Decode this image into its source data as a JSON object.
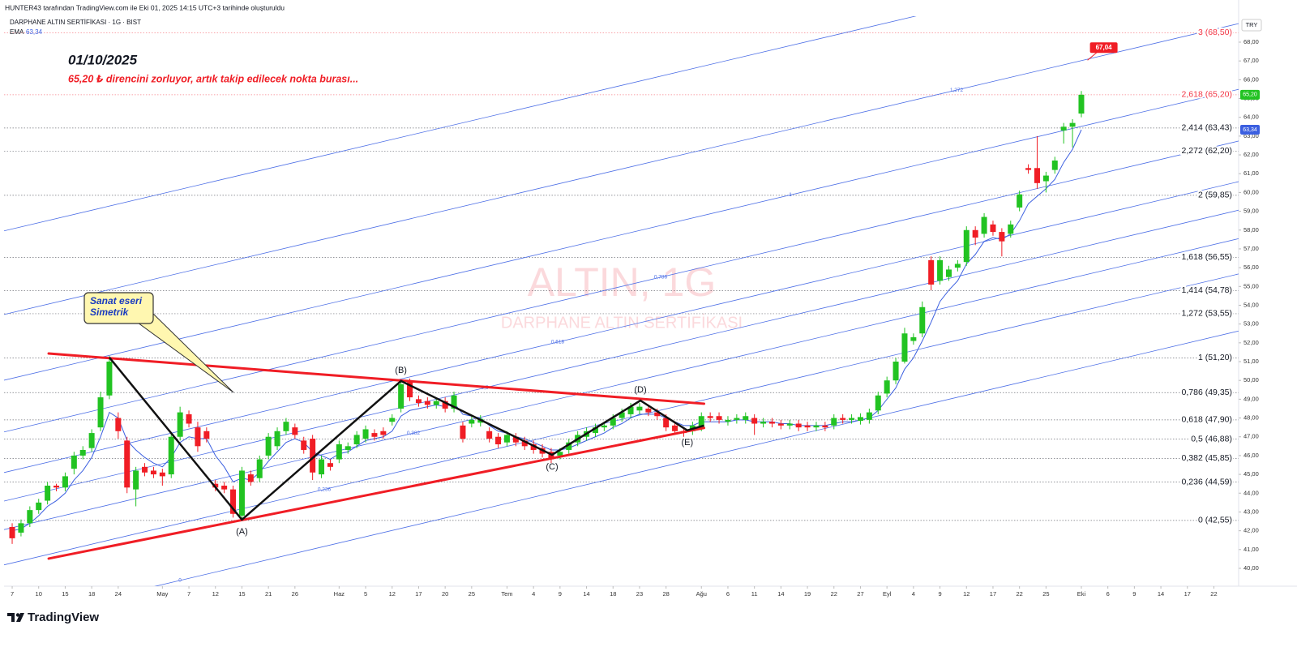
{
  "header": {
    "credit": "HUNTER43 tarafından TradingView.com ile Eki 01, 2025 14:15 UTC+3 tarihinde oluşturuldu",
    "symbol": "DARPHANE ALTIN SERTİFİKASI · 1G · BIST",
    "currency": "TRY",
    "brand": "TradingView"
  },
  "chart_data": {
    "type": "candlestick",
    "title": "01/10/2025",
    "subtitle": "65,20 ₺ direncini zorluyor, artık takip edilecek nokta burası...",
    "watermark": [
      "ALTIN, 1G",
      "DARPHANE ALTIN SERTİFİKASI"
    ],
    "x": [
      0,
      1,
      2,
      3,
      4,
      5,
      6,
      7,
      8,
      9,
      10,
      11,
      12,
      13,
      14,
      15,
      16,
      17,
      18,
      19,
      20,
      21,
      22,
      23,
      24,
      25,
      26,
      27,
      28,
      29,
      30,
      31,
      32,
      33,
      34,
      35,
      36,
      37,
      38,
      39,
      40,
      41,
      42,
      43,
      44,
      45,
      46,
      47,
      48,
      49,
      50,
      51,
      52,
      53,
      54,
      55,
      56,
      57,
      58,
      59,
      60,
      61,
      62,
      63,
      64,
      65,
      66,
      67,
      68,
      69,
      70,
      71,
      72,
      73,
      74,
      75,
      76,
      77,
      78,
      79,
      80,
      81,
      82,
      83,
      84,
      85,
      86,
      87,
      88,
      89,
      90,
      91,
      92,
      93,
      94,
      95,
      96,
      97,
      98,
      99,
      100,
      101,
      102,
      103,
      104,
      105,
      106,
      107,
      108,
      109,
      110,
      111,
      112,
      113,
      114,
      115,
      116,
      117,
      118,
      119,
      120,
      121
    ],
    "open": [
      42.2,
      41.9,
      42.4,
      43.1,
      43.6,
      44.4,
      44.3,
      45.3,
      46.0,
      46.4,
      47.5,
      49.2,
      48.0,
      46.8,
      44.2,
      45.4,
      45.2,
      45.1,
      45.0,
      47.0,
      48.2,
      47.5,
      47.3,
      44.5,
      44.4,
      44.2,
      42.8,
      45.0,
      44.8,
      46.0,
      46.5,
      47.3,
      47.5,
      46.8,
      46.9,
      45.0,
      45.6,
      45.8,
      46.3,
      46.6,
      46.9,
      47.2,
      47.3,
      47.8,
      48.5,
      49.9,
      49.0,
      48.9,
      48.7,
      48.9,
      48.5,
      47.6,
      47.7,
      47.75,
      47.3,
      47.0,
      46.7,
      47.0,
      46.8,
      46.6,
      46.4,
      46.2,
      46.0,
      46.3,
      46.7,
      47.0,
      47.2,
      47.5,
      47.6,
      48.0,
      48.2,
      48.4,
      48.5,
      48.3,
      48.0,
      47.6,
      47.3,
      47.3,
      47.5,
      48.1,
      48.1,
      47.8,
      47.9,
      47.9,
      48.0,
      47.7,
      47.8,
      47.7,
      47.6,
      47.7,
      47.6,
      47.5,
      47.6,
      47.6,
      48.0,
      47.9,
      47.85,
      47.9,
      48.4,
      49.3,
      50.0,
      51.0,
      52.1,
      52.5,
      56.4,
      55.3,
      55.5,
      56.0,
      56.3,
      58.0,
      57.8,
      58.3,
      57.9,
      57.8,
      59.2,
      61.3,
      61.3,
      60.6,
      61.2,
      63.3,
      63.5,
      64.2
    ],
    "high": [
      42.4,
      42.6,
      43.3,
      43.7,
      44.6,
      44.5,
      45.1,
      46.2,
      46.5,
      47.4,
      49.4,
      51.3,
      48.3,
      47.0,
      45.4,
      45.6,
      45.4,
      45.3,
      47.2,
      48.6,
      48.4,
      47.8,
      47.5,
      44.7,
      44.6,
      44.4,
      45.4,
      45.2,
      46.0,
      47.2,
      47.5,
      48.0,
      47.7,
      47.0,
      47.1,
      46.0,
      45.8,
      46.8,
      46.7,
      47.3,
      47.6,
      47.4,
      47.5,
      48.2,
      50.0,
      50.1,
      49.2,
      49.1,
      49.1,
      49.1,
      49.4,
      47.8,
      48.1,
      48.15,
      47.5,
      47.2,
      47.3,
      47.2,
      47.0,
      46.8,
      46.6,
      46.4,
      46.4,
      46.9,
      47.3,
      47.5,
      47.7,
      47.8,
      48.2,
      48.5,
      48.8,
      48.8,
      48.7,
      48.5,
      48.2,
      47.8,
      47.5,
      47.8,
      48.3,
      48.3,
      48.3,
      48.1,
      48.2,
      48.3,
      48.2,
      48.0,
      48.0,
      47.9,
      47.9,
      47.9,
      47.8,
      47.8,
      47.8,
      48.2,
      48.2,
      48.2,
      48.25,
      48.5,
      49.4,
      50.2,
      51.2,
      52.8,
      52.5,
      54.2,
      56.6,
      56.6,
      56.1,
      56.4,
      58.2,
      58.2,
      58.9,
      58.5,
      58.1,
      58.5,
      60.1,
      61.5,
      63.0,
      61.1,
      61.9,
      63.7,
      63.9,
      65.4
    ],
    "low": [
      41.3,
      41.7,
      42.2,
      42.9,
      43.4,
      44.1,
      44.1,
      45.0,
      45.8,
      46.2,
      47.3,
      49.0,
      46.9,
      44.0,
      43.3,
      44.9,
      44.8,
      44.4,
      44.8,
      46.8,
      47.5,
      46.2,
      46.7,
      44.1,
      44.0,
      42.7,
      42.6,
      44.4,
      44.6,
      45.8,
      46.3,
      47.1,
      46.9,
      46.1,
      44.7,
      44.8,
      45.2,
      45.6,
      46.1,
      46.4,
      46.7,
      46.8,
      46.9,
      47.6,
      48.3,
      48.9,
      48.6,
      48.5,
      48.5,
      48.3,
      48.3,
      46.7,
      47.5,
      47.55,
      46.7,
      46.4,
      46.5,
      46.5,
      46.3,
      46.1,
      45.9,
      45.6,
      45.8,
      46.1,
      46.5,
      46.8,
      47.0,
      47.3,
      47.4,
      47.8,
      48.0,
      48.2,
      48.1,
      47.9,
      47.3,
      47.1,
      47.0,
      47.1,
      47.3,
      47.8,
      47.7,
      47.6,
      47.7,
      47.7,
      47.1,
      47.5,
      47.5,
      47.4,
      47.4,
      47.3,
      47.3,
      47.3,
      47.3,
      47.4,
      47.7,
      47.7,
      47.65,
      47.7,
      48.2,
      49.1,
      49.8,
      50.9,
      51.9,
      52.3,
      54.8,
      55.1,
      55.3,
      55.8,
      56.1,
      57.2,
      57.6,
      57.7,
      56.6,
      57.6,
      59.0,
      61.0,
      60.2,
      60.0,
      61.0,
      62.6,
      62.4,
      64.0
    ],
    "close": [
      41.6,
      42.4,
      43.1,
      43.5,
      44.4,
      44.3,
      44.9,
      46.0,
      46.3,
      47.2,
      49.1,
      51.0,
      47.3,
      44.3,
      45.2,
      45.1,
      45.0,
      44.9,
      47.0,
      48.3,
      47.7,
      46.5,
      46.9,
      44.3,
      44.2,
      42.9,
      45.2,
      44.6,
      45.8,
      47.0,
      47.3,
      47.8,
      47.1,
      46.3,
      45.1,
      45.8,
      45.4,
      46.6,
      46.5,
      47.1,
      47.4,
      47.0,
      47.1,
      48.0,
      49.8,
      49.1,
      48.8,
      48.7,
      48.9,
      48.5,
      49.2,
      46.9,
      47.9,
      47.95,
      46.9,
      46.6,
      47.1,
      46.7,
      46.5,
      46.3,
      46.1,
      45.8,
      46.2,
      46.7,
      47.1,
      47.3,
      47.5,
      47.6,
      48.0,
      48.3,
      48.6,
      48.6,
      48.3,
      48.1,
      47.5,
      47.3,
      47.2,
      47.6,
      48.1,
      48.0,
      47.9,
      47.9,
      48.0,
      48.1,
      47.7,
      47.8,
      47.7,
      47.6,
      47.7,
      47.5,
      47.5,
      47.6,
      47.5,
      48.0,
      47.9,
      48.0,
      48.05,
      48.3,
      49.2,
      50.0,
      51.0,
      52.5,
      52.3,
      53.9,
      55.1,
      56.4,
      55.9,
      56.2,
      58.0,
      57.6,
      58.7,
      57.9,
      57.4,
      58.3,
      59.9,
      61.2,
      60.5,
      60.9,
      61.7,
      63.5,
      63.7,
      65.2
    ],
    "colors": {
      "up": "#22c322",
      "down": "#f01d25"
    },
    "last_label": "65,20",
    "ema": {
      "name": "EMA",
      "color": "#3b5fe0",
      "last_label": "63,34",
      "values": [
        42.0,
        42.1,
        42.4,
        42.8,
        43.3,
        43.6,
        44.0,
        44.7,
        45.2,
        45.9,
        47.0,
        48.3,
        48.0,
        46.8,
        46.3,
        45.9,
        45.6,
        45.4,
        45.9,
        46.7,
        47.0,
        46.9,
        46.9,
        46.0,
        45.4,
        44.6,
        44.8,
        44.7,
        45.1,
        45.7,
        46.2,
        46.7,
        46.9,
        46.7,
        46.2,
        46.0,
        45.8,
        46.1,
        46.2,
        46.5,
        46.8,
        46.9,
        47.0,
        47.3,
        48.1,
        48.4,
        48.5,
        48.6,
        48.7,
        48.6,
        48.8,
        48.2,
        48.1,
        48.0,
        47.6,
        47.3,
        47.2,
        47.0,
        46.9,
        46.7,
        46.5,
        46.3,
        46.3,
        46.4,
        46.6,
        46.8,
        47.0,
        47.2,
        47.5,
        47.7,
        48.0,
        48.2,
        48.2,
        48.2,
        48.0,
        47.8,
        47.6,
        47.6,
        47.8,
        47.8,
        47.8,
        47.8,
        47.9,
        47.9,
        47.8,
        47.8,
        47.8,
        47.7,
        47.7,
        47.6,
        47.6,
        47.6,
        47.6,
        47.7,
        47.8,
        47.8,
        47.9,
        48.0,
        48.4,
        49.0,
        49.6,
        50.6,
        51.2,
        52.1,
        53.1,
        54.2,
        54.8,
        55.3,
        56.2,
        56.7,
        57.4,
        57.6,
        57.5,
        57.8,
        58.5,
        59.4,
        59.8,
        60.2,
        60.7,
        61.6,
        62.3,
        63.34
      ]
    },
    "xlim": [
      -0.92,
      138.8
    ],
    "xticks": [
      {
        "value": 0,
        "label": "7"
      },
      {
        "value": 3,
        "label": "10"
      },
      {
        "value": 6,
        "label": "15"
      },
      {
        "value": 9,
        "label": "18"
      },
      {
        "value": 12,
        "label": "24"
      },
      {
        "value": 17,
        "label": "May"
      },
      {
        "value": 20,
        "label": "7"
      },
      {
        "value": 23,
        "label": "12"
      },
      {
        "value": 26,
        "label": "15"
      },
      {
        "value": 29,
        "label": "21"
      },
      {
        "value": 32,
        "label": "26"
      },
      {
        "value": 37,
        "label": "Haz"
      },
      {
        "value": 40,
        "label": "5"
      },
      {
        "value": 43,
        "label": "12"
      },
      {
        "value": 46,
        "label": "17"
      },
      {
        "value": 49,
        "label": "20"
      },
      {
        "value": 52,
        "label": "25"
      },
      {
        "value": 56,
        "label": "Tem"
      },
      {
        "value": 59,
        "label": "4"
      },
      {
        "value": 62,
        "label": "9"
      },
      {
        "value": 65,
        "label": "14"
      },
      {
        "value": 68,
        "label": "18"
      },
      {
        "value": 71,
        "label": "23"
      },
      {
        "value": 74,
        "label": "28"
      },
      {
        "value": 78,
        "label": "Ağu"
      },
      {
        "value": 81,
        "label": "6"
      },
      {
        "value": 84,
        "label": "11"
      },
      {
        "value": 87,
        "label": "14"
      },
      {
        "value": 90,
        "label": "19"
      },
      {
        "value": 93,
        "label": "22"
      },
      {
        "value": 96,
        "label": "27"
      },
      {
        "value": 99,
        "label": "Eyl"
      },
      {
        "value": 102,
        "label": "4"
      },
      {
        "value": 105,
        "label": "9"
      },
      {
        "value": 108,
        "label": "12"
      },
      {
        "value": 111,
        "label": "17"
      },
      {
        "value": 114,
        "label": "22"
      },
      {
        "value": 117,
        "label": "25"
      },
      {
        "value": 121,
        "label": "Eki"
      },
      {
        "value": 124,
        "label": "6"
      },
      {
        "value": 127,
        "label": "9"
      },
      {
        "value": 130,
        "label": "14"
      },
      {
        "value": 133,
        "label": "17"
      },
      {
        "value": 136,
        "label": "22"
      }
    ],
    "ylim": [
      39.05,
      69.38
    ],
    "yticks": [
      {
        "value": 40,
        "label": "40,00"
      },
      {
        "value": 41,
        "label": "41,00"
      },
      {
        "value": 42,
        "label": "42,00"
      },
      {
        "value": 43,
        "label": "43,00"
      },
      {
        "value": 44,
        "label": "44,00"
      },
      {
        "value": 45,
        "label": "45,00"
      },
      {
        "value": 46,
        "label": "46,00"
      },
      {
        "value": 47,
        "label": "47,00"
      },
      {
        "value": 48,
        "label": "48,00"
      },
      {
        "value": 49,
        "label": "49,00"
      },
      {
        "value": 50,
        "label": "50,00"
      },
      {
        "value": 51,
        "label": "51,00"
      },
      {
        "value": 52,
        "label": "52,00"
      },
      {
        "value": 53,
        "label": "53,00"
      },
      {
        "value": 54,
        "label": "54,00"
      },
      {
        "value": 55,
        "label": "55,00"
      },
      {
        "value": 56,
        "label": "56,00"
      },
      {
        "value": 57,
        "label": "57,00"
      },
      {
        "value": 58,
        "label": "58,00"
      },
      {
        "value": 59,
        "label": "59,00"
      },
      {
        "value": 60,
        "label": "60,00"
      },
      {
        "value": 61,
        "label": "61,00"
      },
      {
        "value": 62,
        "label": "62,00"
      },
      {
        "value": 63,
        "label": "63,00"
      },
      {
        "value": 64,
        "label": "64,00"
      },
      {
        "value": 65,
        "label": "65,00"
      },
      {
        "value": 66,
        "label": "66,00"
      },
      {
        "value": 67,
        "label": "67,00"
      },
      {
        "value": 68,
        "label": "68,00"
      }
    ],
    "fib_levels": [
      {
        "value": 68.5,
        "label": "3 (68,50)",
        "color": "#f23645"
      },
      {
        "value": 65.2,
        "label": "2,618 (65,20)",
        "color": "#f23645"
      },
      {
        "value": 63.43,
        "label": "2,414 (63,43)",
        "color": "#131722"
      },
      {
        "value": 62.2,
        "label": "2,272 (62,20)",
        "color": "#131722"
      },
      {
        "value": 59.85,
        "label": "2 (59,85)",
        "color": "#131722"
      },
      {
        "value": 56.55,
        "label": "1,618 (56,55)",
        "color": "#131722"
      },
      {
        "value": 54.78,
        "label": "1,414 (54,78)",
        "color": "#131722"
      },
      {
        "value": 53.55,
        "label": "1,272 (53,55)",
        "color": "#131722"
      },
      {
        "value": 51.2,
        "label": "1 (51,20)",
        "color": "#131722"
      },
      {
        "value": 49.35,
        "label": "0,786 (49,35)",
        "color": "#131722"
      },
      {
        "value": 47.9,
        "label": "0,618 (47,90)",
        "color": "#131722"
      },
      {
        "value": 46.88,
        "label": "0,5 (46,88)",
        "color": "#131722"
      },
      {
        "value": 45.85,
        "label": "0,382 (45,85)",
        "color": "#131722"
      },
      {
        "value": 44.59,
        "label": "0,236 (44,59)",
        "color": "#131722"
      },
      {
        "value": 42.55,
        "label": "0 (42,55)",
        "color": "#131722"
      }
    ],
    "channel": {
      "x": [
        -0.92,
        138.8
      ],
      "base": [
        37.15,
        52.63
      ],
      "unit": 12.86,
      "color": "#4d6fe6",
      "levels": [
        {
          "value": 0,
          "label": "0"
        },
        {
          "value": 0.236,
          "label": "0,236"
        },
        {
          "value": 0.382,
          "label": "0,382"
        },
        {
          "value": 0.5,
          "label": "0,5"
        },
        {
          "value": 0.618,
          "label": "0,618"
        },
        {
          "value": 0.786,
          "label": "0,786"
        },
        {
          "value": 1,
          "label": "1"
        },
        {
          "value": 1.272,
          "label": "1,272"
        },
        {
          "value": 1.618
        }
      ]
    },
    "trend_lines": {
      "color": "#f01d25",
      "lines": [
        {
          "x": [
            4.13,
            78.3
          ],
          "y": [
            51.43,
            48.76
          ]
        },
        {
          "x": [
            4.13,
            78.3
          ],
          "y": [
            40.52,
            47.47
          ]
        }
      ]
    },
    "pattern": {
      "color": "#111111",
      "x": [
        11.0,
        26.0,
        44.0,
        61.1,
        71.1,
        76.4,
        78.3
      ],
      "y": [
        51.22,
        42.59,
        49.97,
        46.04,
        48.93,
        47.34,
        47.6
      ],
      "labels": [
        null,
        "(A)",
        "(B)",
        "(C)",
        "(D)",
        "(E)",
        null
      ]
    },
    "callout": {
      "text": [
        "Sanat eseri",
        "Simetrik"
      ]
    },
    "note": {
      "x": 121.7,
      "value": 67.04,
      "label": "67,04"
    }
  }
}
